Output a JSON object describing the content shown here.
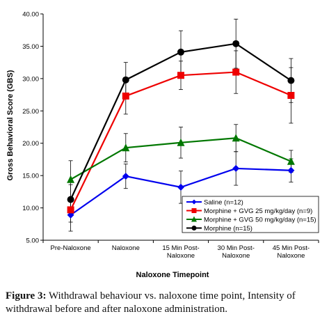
{
  "caption": {
    "label": "Figure 3:",
    "text": "Withdrawal behaviour vs. naloxone time point, Intensity of withdrawal before and after naloxone administration."
  },
  "chart_data": {
    "type": "line",
    "title": "",
    "xlabel": "Naloxone Timepoint",
    "ylabel": "Gross Behavioral Score (GBS)",
    "ylim": [
      5,
      40
    ],
    "yticks": [
      "5.00",
      "10.00",
      "15.00",
      "20.00",
      "25.00",
      "30.00",
      "35.00",
      "40.00"
    ],
    "ytick_values": [
      5,
      10,
      15,
      20,
      25,
      30,
      35,
      40
    ],
    "categories": [
      [
        "Pre-Naloxone"
      ],
      [
        "Naloxone"
      ],
      [
        "15 Min Post-",
        "Naloxone"
      ],
      [
        "30 Min Post-",
        "Naloxone"
      ],
      [
        "45 Min Post-",
        "Naloxone"
      ]
    ],
    "grid": false,
    "legend_position": "bottom-center",
    "series": [
      {
        "name": "Saline (n=12)",
        "color": "#0000ee",
        "marker": "diamond",
        "values": [
          8.9,
          14.9,
          13.2,
          16.1,
          15.8
        ],
        "errors": [
          2.5,
          1.9,
          2.5,
          2.6,
          1.8
        ]
      },
      {
        "name": "Morphine + GVG 25 mg/kg/day (n=9)",
        "color": "#ee0000",
        "marker": "square",
        "values": [
          9.7,
          27.3,
          30.5,
          31.0,
          27.4
        ],
        "errors": [
          1.9,
          2.8,
          2.2,
          3.3,
          4.3
        ]
      },
      {
        "name": "Morphine + GVG 50 mg/kg/day (n=15)",
        "color": "#007700",
        "marker": "triangle",
        "values": [
          14.4,
          19.3,
          20.1,
          20.8,
          17.2
        ],
        "errors": [
          2.9,
          2.2,
          2.4,
          2.1,
          1.7
        ]
      },
      {
        "name": "Morphine (n=15)",
        "color": "#000000",
        "marker": "circle",
        "values": [
          11.3,
          29.8,
          34.1,
          35.4,
          29.7
        ],
        "errors": [
          2.3,
          2.7,
          3.3,
          3.8,
          3.4
        ]
      }
    ]
  }
}
